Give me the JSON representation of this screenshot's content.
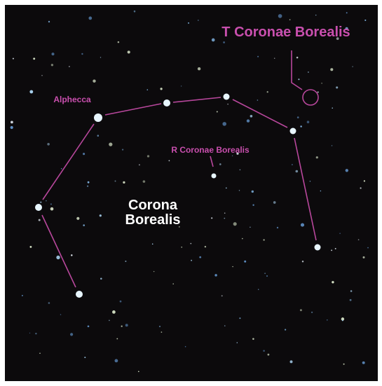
{
  "labels": {
    "target": "T Coronae Borealis",
    "alpha": "Alphecca",
    "variable": "R Coronae Borealis",
    "constellation": [
      "Corona",
      "Borealis"
    ]
  }
}
